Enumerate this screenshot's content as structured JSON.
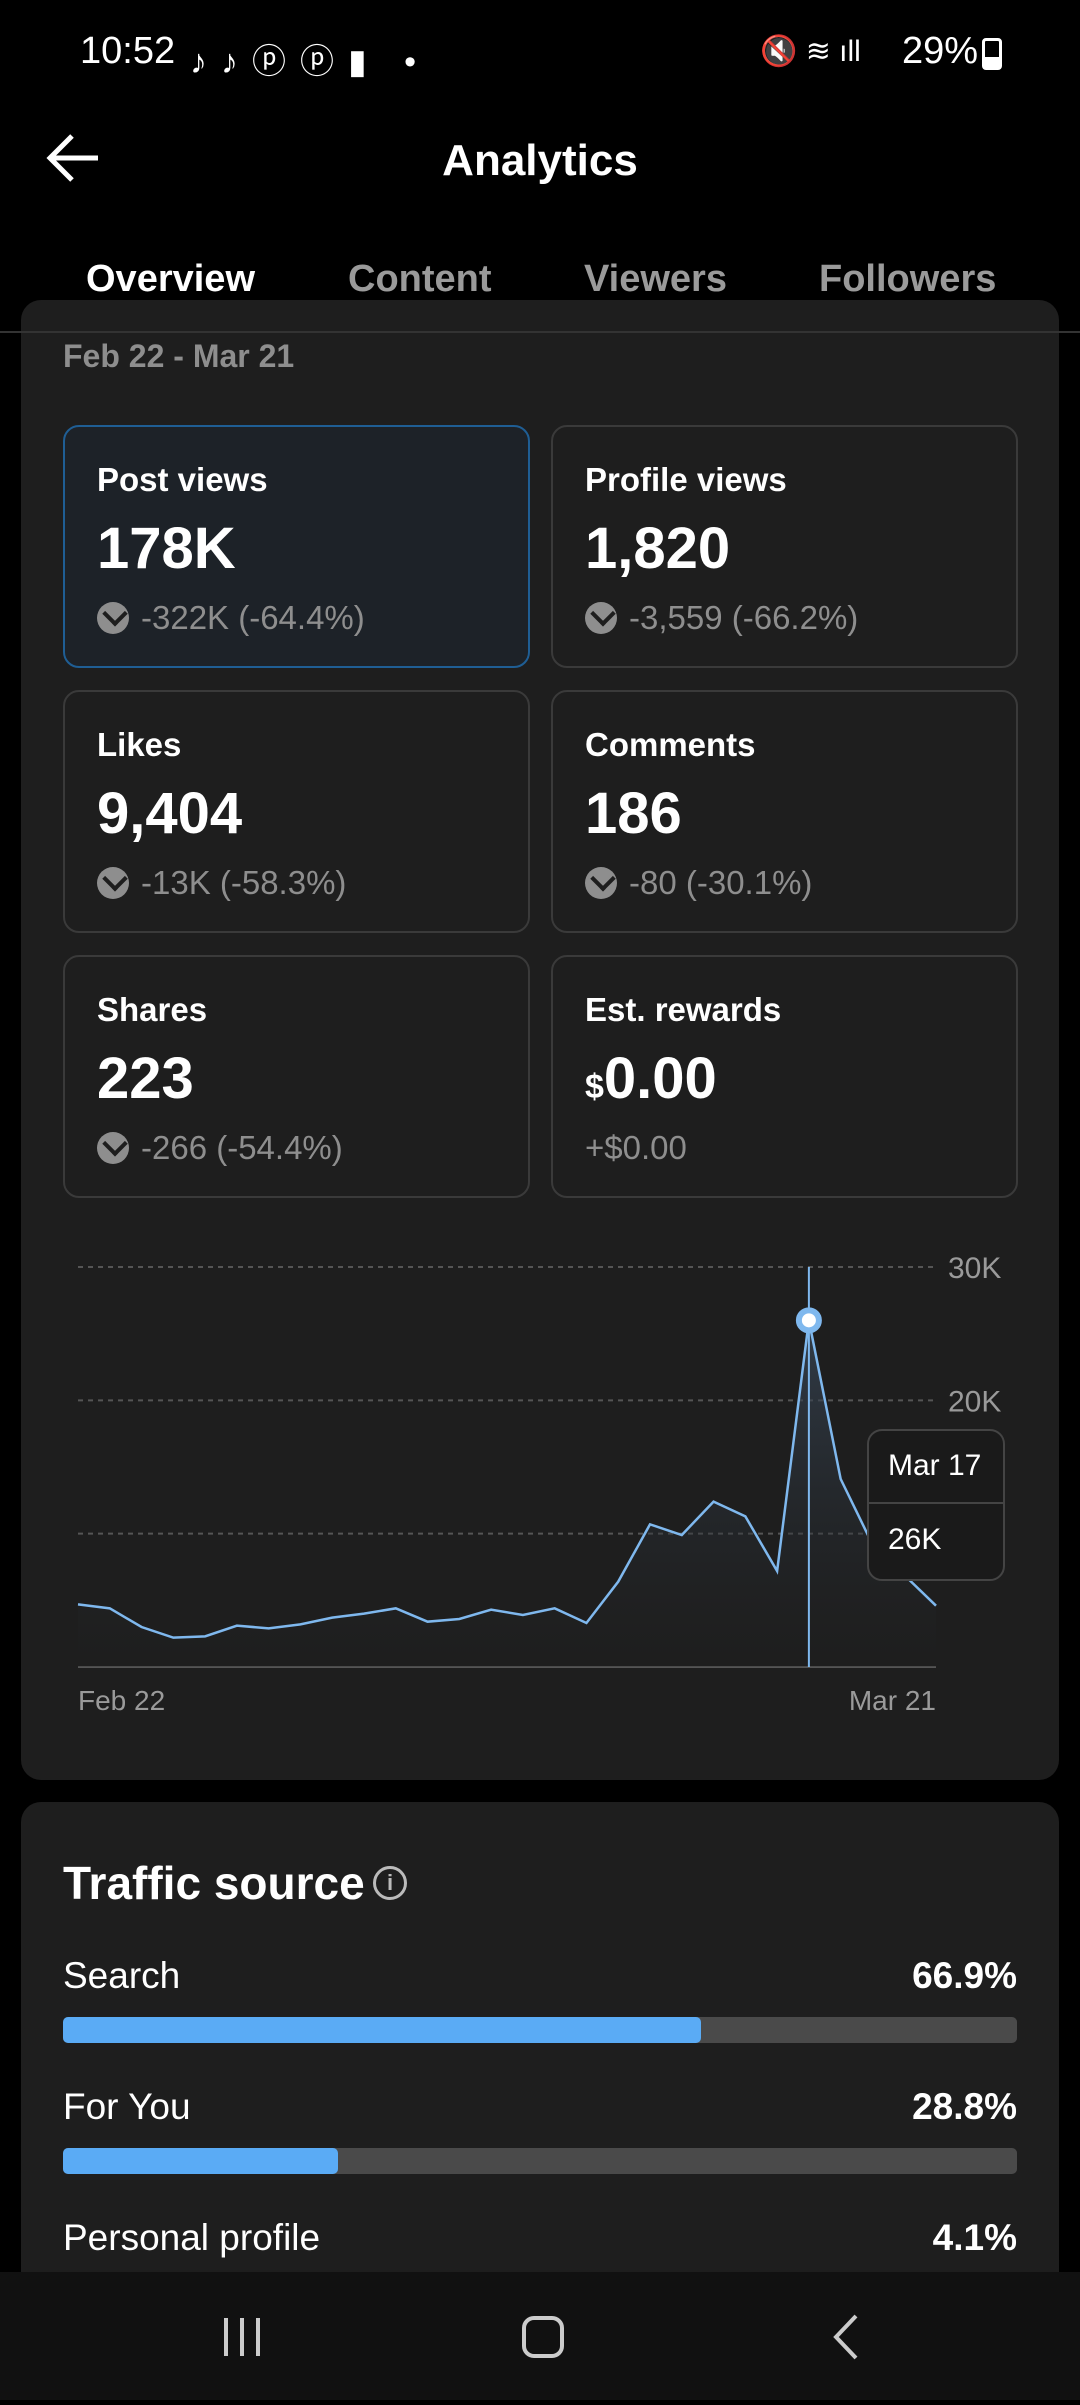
{
  "status_bar": {
    "time": "10:52",
    "battery": "29%"
  },
  "header": {
    "title": "Analytics"
  },
  "tabs": [
    "Overview",
    "Content",
    "Viewers",
    "Followers"
  ],
  "date_range": "Feb 22 - Mar 21",
  "metrics": [
    {
      "title": "Post views",
      "value": "178K",
      "change": "-322K (-64.4%)"
    },
    {
      "title": "Profile views",
      "value": "1,820",
      "change": "-3,559 (-66.2%)"
    },
    {
      "title": "Likes",
      "value": "9,404",
      "change": "-13K (-58.3%)"
    },
    {
      "title": "Comments",
      "value": "186",
      "change": "-80 (-30.1%)"
    },
    {
      "title": "Shares",
      "value": "223",
      "change": "-266 (-54.4%)"
    },
    {
      "title": "Est. rewards",
      "currency": "$",
      "value": "0.00",
      "change": "+$0.00"
    }
  ],
  "chart": {
    "type": "line",
    "color": "#7fb8ee",
    "categories": [
      "Feb 22",
      null,
      null,
      null,
      null,
      null,
      null,
      null,
      null,
      null,
      null,
      null,
      null,
      null,
      null,
      null,
      null,
      null,
      null,
      null,
      null,
      null,
      null,
      null,
      null,
      null,
      null,
      "Mar 21"
    ],
    "values": [
      4700,
      4400,
      3000,
      2200,
      2300,
      3100,
      2900,
      3200,
      3700,
      4000,
      4400,
      3400,
      3600,
      4300,
      3900,
      4400,
      3300,
      6400,
      10700,
      9900,
      12400,
      11300,
      7200,
      26000,
      14100,
      9200,
      6900,
      4600
    ],
    "ylim": [
      0,
      30000
    ],
    "yticks": [
      {
        "value": 10000,
        "label": null
      },
      {
        "value": 20000,
        "label": "20K"
      },
      {
        "value": 30000,
        "label": "30K"
      }
    ],
    "grid": true,
    "tooltip": {
      "x": "Mar 17",
      "value": 26000,
      "label": "26K"
    }
  },
  "traffic": {
    "title": "Traffic source",
    "color": "#5aabf5",
    "rows": [
      {
        "name": "Search",
        "value": 66.9,
        "value_label": "66.9%"
      },
      {
        "name": "For You",
        "value": 28.8,
        "value_label": "28.8%"
      },
      {
        "name": "Personal profile",
        "value": 4.1,
        "value_label": "4.1%"
      }
    ]
  }
}
